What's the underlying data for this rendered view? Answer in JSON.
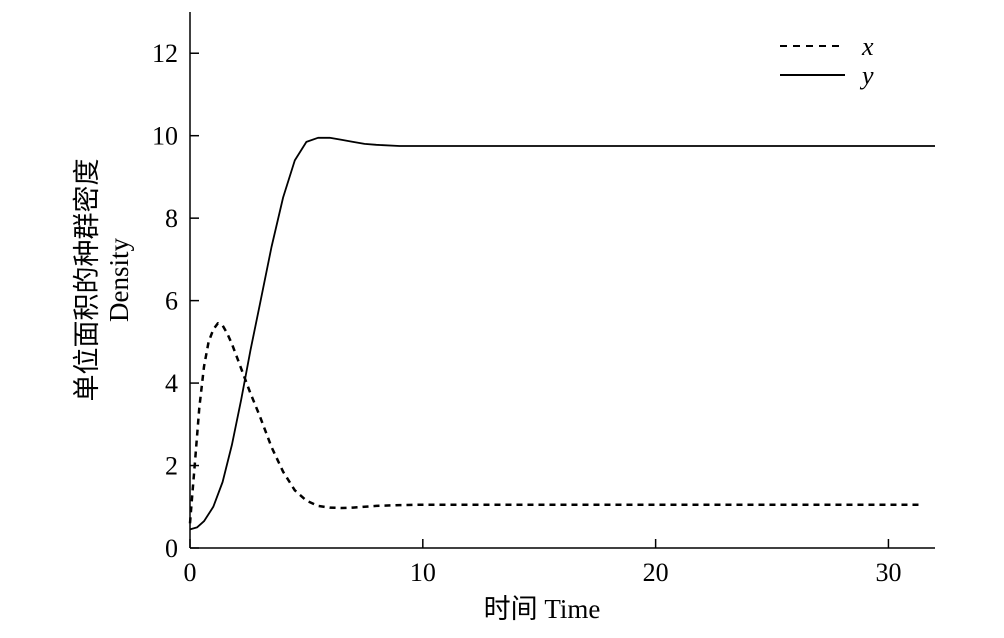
{
  "chart_data": {
    "type": "line",
    "title": "",
    "xlabel": "时间 Time",
    "ylabel_cn": "单位面积的种群密度",
    "ylabel_en": "Density",
    "xlim": [
      0,
      32
    ],
    "ylim": [
      0,
      13
    ],
    "xticks": [
      0,
      10,
      20,
      30
    ],
    "yticks": [
      0,
      2,
      4,
      6,
      8,
      10,
      12
    ],
    "xtick_labels": [
      "0",
      "10",
      "20",
      "30"
    ],
    "ytick_labels": [
      "0",
      "2",
      "4",
      "6",
      "8",
      "10",
      "12"
    ],
    "grid": false,
    "legend_position": "top-right",
    "series": [
      {
        "name": "x",
        "style": "dashed",
        "color": "#000000",
        "x": [
          0,
          0.1,
          0.2,
          0.4,
          0.6,
          0.8,
          1.0,
          1.2,
          1.4,
          1.6,
          1.8,
          2.0,
          2.3,
          2.6,
          3.0,
          3.5,
          4.0,
          4.5,
          5.0,
          5.5,
          6.0,
          6.5,
          7.0,
          8.0,
          9.0,
          10.0,
          12.0,
          15.0,
          20.0,
          25.0,
          30.0,
          31.5
        ],
        "y": [
          0.6,
          1.3,
          2.0,
          3.4,
          4.4,
          5.0,
          5.3,
          5.45,
          5.4,
          5.2,
          4.95,
          4.65,
          4.2,
          3.75,
          3.2,
          2.45,
          1.85,
          1.4,
          1.15,
          1.02,
          0.98,
          0.97,
          0.98,
          1.02,
          1.04,
          1.05,
          1.05,
          1.05,
          1.05,
          1.05,
          1.05,
          1.05
        ]
      },
      {
        "name": "y",
        "style": "solid",
        "color": "#000000",
        "x": [
          0,
          0.3,
          0.6,
          1.0,
          1.4,
          1.8,
          2.2,
          2.6,
          3.0,
          3.5,
          4.0,
          4.5,
          5.0,
          5.5,
          6.0,
          6.5,
          7.0,
          7.5,
          8.0,
          9.0,
          10.0,
          12.0,
          15.0,
          20.0,
          25.0,
          30.0,
          32.0
        ],
        "y": [
          0.45,
          0.5,
          0.65,
          1.0,
          1.6,
          2.5,
          3.6,
          4.8,
          5.9,
          7.3,
          8.5,
          9.4,
          9.85,
          9.95,
          9.95,
          9.9,
          9.85,
          9.8,
          9.78,
          9.75,
          9.75,
          9.75,
          9.75,
          9.75,
          9.75,
          9.75,
          9.75
        ]
      }
    ]
  }
}
